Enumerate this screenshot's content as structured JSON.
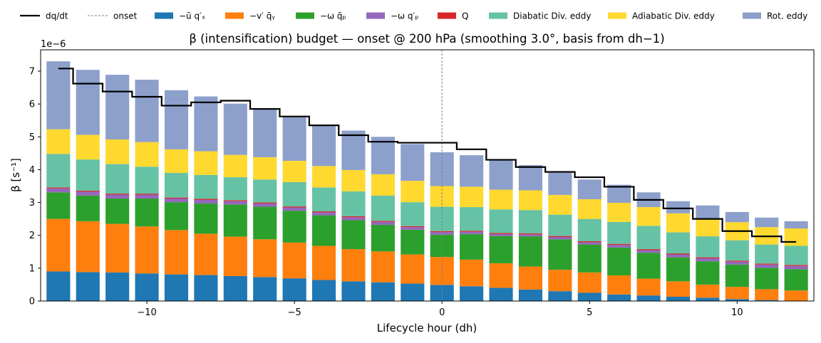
{
  "chart_data": {
    "type": "bar",
    "stacked": true,
    "title": "β (intensification) budget — onset @ 200 hPa  (smoothing 3.0°, basis from dh−1)",
    "xlabel": "Lifecycle hour (dh)",
    "ylabel": "β  [s⁻¹]",
    "y_offset_text": "1e−6",
    "xlim": [
      -13.6,
      12.6
    ],
    "ylim": [
      0,
      7.65
    ],
    "x_ticks": [
      -10,
      -5,
      0,
      5,
      10
    ],
    "x_tick_labels": [
      "−10",
      "−5",
      "0",
      "5",
      "10"
    ],
    "y_ticks": [
      0,
      1,
      2,
      3,
      4,
      5,
      6,
      7
    ],
    "y_tick_labels": [
      "0",
      "1",
      "2",
      "3",
      "4",
      "5",
      "6",
      "7"
    ],
    "grid": false,
    "legend_position": "top, above plot, single row",
    "vline": {
      "x": 0,
      "label": "onset",
      "color": "#808080",
      "style": "dashed"
    },
    "x": [
      -13,
      -12,
      -11,
      -10,
      -9,
      -8,
      -7,
      -6,
      -5,
      -4,
      -3,
      -2,
      -1,
      0,
      1,
      2,
      3,
      4,
      5,
      6,
      7,
      8,
      9,
      10,
      11,
      12
    ],
    "series": [
      {
        "name": "−ū q′ₓ",
        "color": "#1f77b4",
        "values": [
          0.9,
          0.88,
          0.87,
          0.84,
          0.81,
          0.79,
          0.76,
          0.73,
          0.69,
          0.64,
          0.6,
          0.57,
          0.53,
          0.49,
          0.45,
          0.4,
          0.35,
          0.3,
          0.25,
          0.2,
          0.17,
          0.13,
          0.1,
          0.06,
          0.03,
          0.01
        ]
      },
      {
        "name": "−v′ q̄ᵧ",
        "color": "#ff7f0e",
        "values": [
          1.6,
          1.55,
          1.48,
          1.43,
          1.35,
          1.26,
          1.2,
          1.15,
          1.09,
          1.04,
          0.98,
          0.94,
          0.89,
          0.85,
          0.81,
          0.75,
          0.7,
          0.65,
          0.62,
          0.58,
          0.51,
          0.47,
          0.4,
          0.37,
          0.33,
          0.31
        ]
      },
      {
        "name": "−ω q̄ₚ",
        "color": "#2ca02c",
        "values": [
          0.81,
          0.78,
          0.77,
          0.85,
          0.85,
          0.92,
          0.98,
          0.99,
          0.97,
          0.93,
          0.88,
          0.81,
          0.75,
          0.68,
          0.78,
          0.83,
          0.92,
          0.93,
          0.85,
          0.85,
          0.79,
          0.73,
          0.71,
          0.68,
          0.65,
          0.65
        ]
      },
      {
        "name": "−ω q′ₚ",
        "color": "#9467bd",
        "values": [
          0.12,
          0.12,
          0.12,
          0.12,
          0.11,
          0.11,
          0.1,
          0.1,
          0.1,
          0.09,
          0.09,
          0.09,
          0.08,
          0.08,
          0.07,
          0.06,
          0.06,
          0.07,
          0.07,
          0.08,
          0.08,
          0.09,
          0.09,
          0.09,
          0.1,
          0.1
        ]
      },
      {
        "name": "Q",
        "color": "#d62728",
        "values": [
          0.03,
          0.03,
          0.03,
          0.03,
          0.03,
          0.03,
          0.03,
          0.03,
          0.03,
          0.03,
          0.03,
          0.03,
          0.03,
          0.03,
          0.03,
          0.03,
          0.03,
          0.03,
          0.03,
          0.03,
          0.03,
          0.03,
          0.03,
          0.03,
          0.03,
          0.03
        ]
      },
      {
        "name": "Diabatic Div. eddy",
        "color": "#66c2a5",
        "values": [
          1.02,
          0.95,
          0.9,
          0.82,
          0.75,
          0.73,
          0.7,
          0.7,
          0.74,
          0.73,
          0.76,
          0.77,
          0.73,
          0.74,
          0.72,
          0.72,
          0.71,
          0.65,
          0.68,
          0.67,
          0.71,
          0.64,
          0.64,
          0.62,
          0.58,
          0.58
        ]
      },
      {
        "name": "Adiabatic Div. eddy",
        "color": "#ffd92f",
        "values": [
          0.75,
          0.75,
          0.75,
          0.75,
          0.72,
          0.72,
          0.68,
          0.68,
          0.65,
          0.65,
          0.65,
          0.65,
          0.65,
          0.63,
          0.62,
          0.6,
          0.6,
          0.6,
          0.6,
          0.58,
          0.57,
          0.58,
          0.55,
          0.55,
          0.53,
          0.53
        ]
      },
      {
        "name": "Rot. eddy",
        "color": "#8da0cb",
        "values": [
          2.07,
          1.98,
          1.97,
          1.9,
          1.8,
          1.67,
          1.56,
          1.49,
          1.33,
          1.22,
          1.2,
          1.14,
          1.12,
          1.03,
          0.96,
          0.89,
          0.77,
          0.67,
          0.6,
          0.55,
          0.45,
          0.37,
          0.39,
          0.31,
          0.29,
          0.22
        ]
      }
    ],
    "line": {
      "name": "dq/dt",
      "color": "#000000",
      "style": "step",
      "values": [
        7.08,
        6.62,
        6.38,
        6.22,
        5.95,
        6.05,
        6.1,
        5.85,
        5.62,
        5.35,
        5.05,
        4.85,
        4.82,
        4.82,
        4.62,
        4.3,
        4.08,
        3.93,
        3.77,
        3.48,
        3.08,
        2.82,
        2.5,
        2.13,
        1.97,
        1.8
      ]
    }
  }
}
